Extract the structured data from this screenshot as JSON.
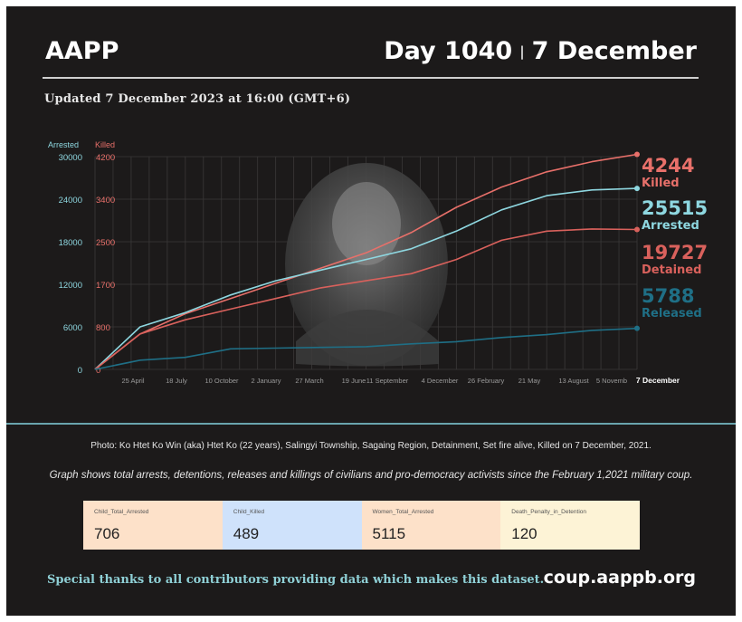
{
  "header": {
    "brand": "AAPP",
    "day": "Day 1040",
    "separator": "|",
    "date": "7 December",
    "updated": "Updated 7 December 2023 at 16:00 (GMT+6)"
  },
  "chart_data": {
    "type": "line",
    "y_left_label": "Arrested",
    "y_right_label": "Killed",
    "y_left_ticks": [
      "30000",
      "24000",
      "18000",
      "12000",
      "6000",
      "0"
    ],
    "y_right_ticks": [
      "4200",
      "3400",
      "2500",
      "1700",
      "800",
      "0"
    ],
    "x_tick_labels": [
      "25 April",
      "18 July",
      "10 October",
      "2 January",
      "27 March",
      "19 June",
      "11 September",
      "4 December",
      "26 February",
      "21 May",
      "13 August",
      "5 Novemb",
      "7 December"
    ],
    "ylim_left": [
      0,
      30000
    ],
    "ylim_right": [
      0,
      4200
    ],
    "grid": true,
    "series": [
      {
        "name": "Killed",
        "axis": "right",
        "color": "#e8706a",
        "end_value": 4244,
        "values": [
          0,
          700,
          1100,
          1400,
          1700,
          2000,
          2300,
          2700,
          3200,
          3600,
          3900,
          4100,
          4244
        ]
      },
      {
        "name": "Arrested",
        "axis": "left",
        "color": "#8ed7e0",
        "end_value": 25515,
        "values": [
          0,
          6000,
          8000,
          10500,
          12500,
          14000,
          15500,
          17000,
          19500,
          22500,
          24500,
          25300,
          25515
        ]
      },
      {
        "name": "Detained",
        "axis": "left",
        "color": "#d9615c",
        "end_value": 19727,
        "values": [
          0,
          5000,
          7000,
          8500,
          10000,
          11500,
          12500,
          13500,
          15500,
          18200,
          19500,
          19800,
          19727
        ]
      },
      {
        "name": "Released",
        "axis": "left",
        "color": "#1f6f86",
        "end_value": 5788,
        "values": [
          0,
          1300,
          1700,
          2900,
          3000,
          3100,
          3200,
          3600,
          3900,
          4500,
          4900,
          5500,
          5788
        ]
      }
    ]
  },
  "end_labels": {
    "killed_value": "4244",
    "killed_name": "Killed",
    "arrested_value": "25515",
    "arrested_name": "Arrested",
    "detained_value": "19727",
    "detained_name": "Detained",
    "released_value": "5788",
    "released_name": "Released"
  },
  "captions": {
    "photo": "Photo: Ko Htet Ko Win (aka) Htet Ko (22 years), Salingyi Township, Sagaing Region, Detainment, Set fire alive, Killed on 7 December, 2021.",
    "graph": "Graph shows total arrests, detentions, releases and killings of civilians and pro-democracy activists since the February 1,2021 military coup."
  },
  "stats": [
    {
      "label": "Child_Total_Arrested",
      "value": "706",
      "color": "#fde1c9"
    },
    {
      "label": "Child_Killed",
      "value": "489",
      "color": "#cfe2fb"
    },
    {
      "label": "Women_Total_Arrested",
      "value": "5115",
      "color": "#fde1c9"
    },
    {
      "label": "Death_Penalty_in_Detention",
      "value": "120",
      "color": "#fdf3d6"
    }
  ],
  "footer": {
    "thanks": "Special thanks to all contributors providing data which makes this dataset.",
    "site": "coup.aappb.org"
  },
  "colors": {
    "background": "#1c1a1a",
    "arrested": "#8ed7e0",
    "killed": "#e8706a",
    "detained": "#d9615c",
    "released": "#1f6f86"
  }
}
